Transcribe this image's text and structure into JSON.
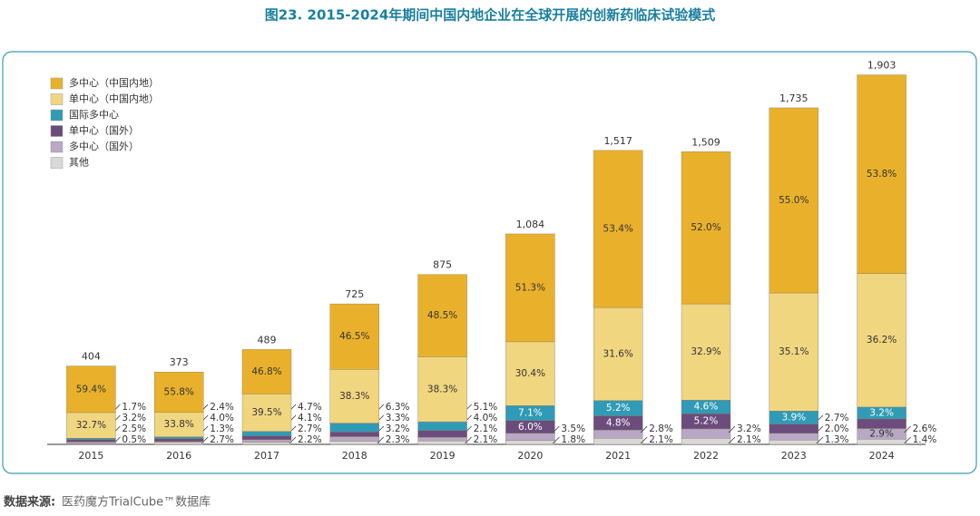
{
  "chart_data": {
    "type": "stacked-bar",
    "title": "图23. 2015-2024年期间中国内地企业在全球开展的创新药临床试验模式",
    "categories": [
      "2015",
      "2016",
      "2017",
      "2018",
      "2019",
      "2020",
      "2021",
      "2022",
      "2023",
      "2024"
    ],
    "totals": {
      "values": [
        404,
        373,
        489,
        725,
        875,
        1084,
        1517,
        1509,
        1735,
        1903
      ],
      "value_labels": [
        "404",
        "373",
        "489",
        "725",
        "875",
        "1,084",
        "1,517",
        "1,509",
        "1,735",
        "1,903"
      ]
    },
    "series": [
      {
        "name": "其他",
        "color": "#d9d9d9",
        "values": [
          0.5,
          2.7,
          2.2,
          2.3,
          2.1,
          1.8,
          2.1,
          2.1,
          1.3,
          1.4
        ],
        "value_labels": [
          "0.5%",
          "2.7%",
          "2.2%",
          "2.3%",
          "2.1%",
          "1.8%",
          "2.1%",
          "2.1%",
          "1.3%",
          "1.4%"
        ]
      },
      {
        "name": "多中心（国外）",
        "color": "#b8a8c6",
        "values": [
          2.5,
          1.3,
          2.7,
          3.2,
          2.1,
          3.5,
          2.8,
          3.2,
          2.0,
          2.9
        ],
        "value_labels": [
          "2.5%",
          "1.3%",
          "2.7%",
          "3.2%",
          "2.1%",
          "3.5%",
          "2.8%",
          "3.2%",
          "2.0%",
          "2.9%"
        ]
      },
      {
        "name": "单中心（国外）",
        "color": "#6b4c7c",
        "values": [
          3.2,
          4.0,
          4.1,
          3.3,
          4.0,
          6.0,
          4.8,
          5.2,
          2.7,
          2.6
        ],
        "value_labels": [
          "3.2%",
          "4.0%",
          "4.1%",
          "3.3%",
          "4.0%",
          "6.0%",
          "4.8%",
          "5.2%",
          "2.7%",
          "2.6%"
        ]
      },
      {
        "name": "国际多中心",
        "color": "#2f9bb6",
        "values": [
          1.7,
          2.4,
          4.7,
          6.3,
          5.1,
          7.1,
          5.2,
          4.6,
          3.9,
          3.2
        ],
        "value_labels": [
          "1.7%",
          "2.4%",
          "4.7%",
          "6.3%",
          "5.1%",
          "7.1%",
          "5.2%",
          "4.6%",
          "3.9%",
          "3.2%"
        ]
      },
      {
        "name": "单中心（中国内地）",
        "color": "#f1d680",
        "values": [
          32.7,
          33.8,
          39.5,
          38.3,
          38.3,
          30.4,
          31.6,
          32.9,
          35.1,
          36.2
        ],
        "value_labels": [
          "32.7%",
          "33.8%",
          "39.5%",
          "38.3%",
          "38.3%",
          "30.4%",
          "31.6%",
          "32.9%",
          "35.1%",
          "36.2%"
        ]
      },
      {
        "name": "多中心（中国内地）",
        "color": "#e9b12b",
        "values": [
          59.4,
          55.8,
          46.8,
          46.5,
          48.5,
          51.3,
          53.4,
          52.0,
          55.0,
          53.8
        ],
        "value_labels": [
          "59.4%",
          "55.8%",
          "46.8%",
          "46.5%",
          "48.5%",
          "51.3%",
          "53.4%",
          "52.0%",
          "55.0%",
          "53.8%"
        ]
      }
    ],
    "legend": "top-left"
  },
  "source": {
    "label": "数据来源:",
    "text": "医药魔方TrialCube™数据库"
  }
}
